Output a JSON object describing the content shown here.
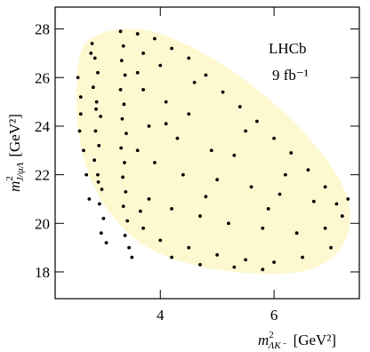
{
  "chart_data": {
    "type": "scatter",
    "annotations": [
      "LHCb",
      "9 fb⁻¹"
    ],
    "x_label": {
      "symbol": "m",
      "superscript": "2",
      "subscript": "ΛK⁻",
      "unit": "[GeV²]"
    },
    "y_label": {
      "symbol": "m",
      "superscript": "2",
      "subscript": "J/ψΛ",
      "unit": "[GeV²]"
    },
    "xlim": [
      2.15,
      7.5
    ],
    "ylim": [
      16.9,
      28.9
    ],
    "xticks": [
      4,
      6
    ],
    "yticks": [
      18,
      20,
      22,
      24,
      26,
      28
    ],
    "series": [
      {
        "color": "#000000",
        "x": [
          2.8,
          2.85,
          2.9,
          2.82,
          2.88,
          2.95,
          2.86,
          2.92,
          2.84,
          2.9,
          2.97,
          2.93,
          3.0,
          2.96,
          3.05,
          2.78,
          2.87,
          2.91,
          3.3,
          3.35,
          3.32,
          3.38,
          3.3,
          3.36,
          3.33,
          3.4,
          3.31,
          3.37,
          3.34,
          3.39,
          3.35,
          3.42,
          3.38,
          3.45,
          3.5,
          2.55,
          2.6,
          2.65,
          2.7,
          2.6,
          2.75,
          2.58,
          3.6,
          3.9,
          4.2,
          4.5,
          3.7,
          4.0,
          4.8,
          5.1,
          5.4,
          5.7,
          6.0,
          6.3,
          6.6,
          6.9,
          7.1,
          7.2,
          3.7,
          4.1,
          4.5,
          3.8,
          4.3,
          4.9,
          5.3,
          3.9,
          4.4,
          5.0,
          5.6,
          6.1,
          3.8,
          4.2,
          4.7,
          5.2,
          5.8,
          6.4,
          6.9,
          3.7,
          4.0,
          4.5,
          5.0,
          5.5,
          6.0,
          6.5,
          7.0,
          4.2,
          4.7,
          5.3,
          5.8,
          4.6,
          5.5,
          6.2,
          6.7,
          3.6,
          3.65,
          4.8,
          5.9,
          3.6,
          4.1,
          7.3
        ],
        "y": [
          27.4,
          26.8,
          26.2,
          25.6,
          25.0,
          24.4,
          23.8,
          23.2,
          22.6,
          22.0,
          21.4,
          20.8,
          20.2,
          19.6,
          19.2,
          27.0,
          24.7,
          21.7,
          27.9,
          27.3,
          26.7,
          26.1,
          25.5,
          24.9,
          24.3,
          23.7,
          23.1,
          22.5,
          21.9,
          21.3,
          20.7,
          20.1,
          19.5,
          19.0,
          18.6,
          26.0,
          24.5,
          23.0,
          22.0,
          25.2,
          21.0,
          23.8,
          27.8,
          27.6,
          27.2,
          26.8,
          27.0,
          26.5,
          26.1,
          25.4,
          24.8,
          24.2,
          23.5,
          22.9,
          22.2,
          21.5,
          20.8,
          20.3,
          25.5,
          25.0,
          24.5,
          24.0,
          23.5,
          23.0,
          22.8,
          22.5,
          22.0,
          21.8,
          21.5,
          21.2,
          21.0,
          20.6,
          20.3,
          20.0,
          19.8,
          19.6,
          19.8,
          19.8,
          19.3,
          19.0,
          18.7,
          18.5,
          18.4,
          18.6,
          19.0,
          18.6,
          18.3,
          18.2,
          18.1,
          25.8,
          23.8,
          22.0,
          20.9,
          23.0,
          20.5,
          21.1,
          20.6,
          26.2,
          24.1,
          21.0
        ]
      }
    ]
  }
}
